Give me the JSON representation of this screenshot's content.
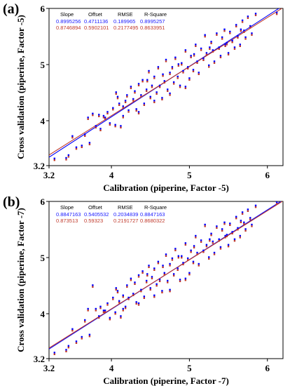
{
  "colors": {
    "calibration": "#0000ff",
    "validation": "#c0392b",
    "point_fill": "#7b2d8e",
    "axis": "#000000"
  },
  "chart_data": [
    {
      "panel_label": "(a)",
      "type": "scatter",
      "xlabel": "Calibration (piperine, Factor -5)",
      "ylabel": "Cross validation (piperine, Factor -5)",
      "xlim": [
        3.2,
        6.2
      ],
      "ylim": [
        3.2,
        6.0
      ],
      "x_ticks": [
        "3.2",
        "4",
        "5",
        "6"
      ],
      "y_ticks": [
        "3.2",
        "4",
        "5",
        "6"
      ],
      "stats_table": {
        "headers": [
          "Slope",
          "Offset",
          "RMSE",
          "R-Square"
        ],
        "rows": [
          {
            "color": "blue",
            "values": [
              "0.8995256",
              "0.4711136",
              "0.189965",
              "0.8995257"
            ]
          },
          {
            "color": "red",
            "values": [
              "0.8746894",
              "0.5902101",
              "0.2177495",
              "0.8633951"
            ]
          }
        ]
      },
      "fit_lines": [
        {
          "color": "blue",
          "slope": 0.8995,
          "offset": 0.4711
        },
        {
          "color": "red",
          "slope": 0.8747,
          "offset": 0.5902
        }
      ],
      "points": [
        [
          3.27,
          3.32
        ],
        [
          3.42,
          3.33
        ],
        [
          3.45,
          3.38
        ],
        [
          3.5,
          3.72
        ],
        [
          3.55,
          3.52
        ],
        [
          3.62,
          3.55
        ],
        [
          3.66,
          3.75
        ],
        [
          3.72,
          3.6
        ],
        [
          3.76,
          4.12
        ],
        [
          3.8,
          3.9
        ],
        [
          3.84,
          4.1
        ],
        [
          3.86,
          3.85
        ],
        [
          3.9,
          4.08
        ],
        [
          3.95,
          4.15
        ],
        [
          3.98,
          3.95
        ],
        [
          4.02,
          4.22
        ],
        [
          4.05,
          3.92
        ],
        [
          4.08,
          4.42
        ],
        [
          4.1,
          4.3
        ],
        [
          4.12,
          3.9
        ],
        [
          4.15,
          4.25
        ],
        [
          4.18,
          4.35
        ],
        [
          4.2,
          4.45
        ],
        [
          4.22,
          4.18
        ],
        [
          4.25,
          4.6
        ],
        [
          4.28,
          4.38
        ],
        [
          4.3,
          4.52
        ],
        [
          4.32,
          4.2
        ],
        [
          4.35,
          4.65
        ],
        [
          4.38,
          4.45
        ],
        [
          4.4,
          4.72
        ],
        [
          4.42,
          4.3
        ],
        [
          4.45,
          4.55
        ],
        [
          4.48,
          4.88
        ],
        [
          4.5,
          4.42
        ],
        [
          4.52,
          4.62
        ],
        [
          4.55,
          4.78
        ],
        [
          4.58,
          4.5
        ],
        [
          4.6,
          4.95
        ],
        [
          4.62,
          4.62
        ],
        [
          4.65,
          4.4
        ],
        [
          4.68,
          4.7
        ],
        [
          4.7,
          5.08
        ],
        [
          4.72,
          4.55
        ],
        [
          4.75,
          4.85
        ],
        [
          4.78,
          4.95
        ],
        [
          4.8,
          4.68
        ],
        [
          4.82,
          5.12
        ],
        [
          4.85,
          4.78
        ],
        [
          4.88,
          4.62
        ],
        [
          4.9,
          5.02
        ],
        [
          4.92,
          4.88
        ],
        [
          4.95,
          5.25
        ],
        [
          4.98,
          4.95
        ],
        [
          5.0,
          4.75
        ],
        [
          5.02,
          5.15
        ],
        [
          5.05,
          4.9
        ],
        [
          5.08,
          5.35
        ],
        [
          5.1,
          5.05
        ],
        [
          5.12,
          4.85
        ],
        [
          5.15,
          5.28
        ],
        [
          5.18,
          5.1
        ],
        [
          5.2,
          5.52
        ],
        [
          5.22,
          5.2
        ],
        [
          5.25,
          4.98
        ],
        [
          5.28,
          5.4
        ],
        [
          5.3,
          5.25
        ],
        [
          5.32,
          5.05
        ],
        [
          5.35,
          5.55
        ],
        [
          5.38,
          5.3
        ],
        [
          5.4,
          5.15
        ],
        [
          5.42,
          5.48
        ],
        [
          5.45,
          5.62
        ],
        [
          5.48,
          5.38
        ],
        [
          5.5,
          5.2
        ],
        [
          5.52,
          5.58
        ],
        [
          5.55,
          5.42
        ],
        [
          5.58,
          5.3
        ],
        [
          5.6,
          5.7
        ],
        [
          5.62,
          5.5
        ],
        [
          5.65,
          5.35
        ],
        [
          5.68,
          5.78
        ],
        [
          5.7,
          5.6
        ],
        [
          5.72,
          5.48
        ],
        [
          5.75,
          5.85
        ],
        [
          5.78,
          5.68
        ],
        [
          5.8,
          5.55
        ],
        [
          5.85,
          5.9
        ],
        [
          6.12,
          5.92
        ],
        [
          4.15,
          4.08
        ],
        [
          4.35,
          4.15
        ],
        [
          4.55,
          4.35
        ],
        [
          4.75,
          4.48
        ],
        [
          4.95,
          4.6
        ],
        [
          3.92,
          4.05
        ],
        [
          4.06,
          4.5
        ],
        [
          4.46,
          4.72
        ],
        [
          4.66,
          4.82
        ],
        [
          4.86,
          5.0
        ],
        [
          5.06,
          5.18
        ],
        [
          5.26,
          5.3
        ],
        [
          5.46,
          5.35
        ],
        [
          5.66,
          5.62
        ],
        [
          3.7,
          4.05
        ]
      ]
    },
    {
      "panel_label": "(b)",
      "type": "scatter",
      "xlabel": "Calibration (piperine, Factor -7)",
      "ylabel": "Cross validation (piperine, Factor -7)",
      "xlim": [
        3.2,
        6.2
      ],
      "ylim": [
        3.2,
        6.0
      ],
      "x_ticks": [
        "3.2",
        "4",
        "5",
        "6"
      ],
      "y_ticks": [
        "3.2",
        "4",
        "5",
        "6"
      ],
      "stats_table": {
        "headers": [
          "Slope",
          "Offset",
          "RMSE",
          "R-Square"
        ],
        "rows": [
          {
            "color": "blue",
            "values": [
              "0.8847163",
              "0.5405532",
              "0.2034839",
              "0.8847163"
            ]
          },
          {
            "color": "red",
            "values": [
              "0.873513",
              "0.59323",
              "0.2191727",
              "0.8680322"
            ]
          }
        ]
      },
      "fit_lines": [
        {
          "color": "blue",
          "slope": 0.8847,
          "offset": 0.5406
        },
        {
          "color": "red",
          "slope": 0.8735,
          "offset": 0.5932
        }
      ],
      "points": [
        [
          3.27,
          3.3
        ],
        [
          3.42,
          3.35
        ],
        [
          3.45,
          3.42
        ],
        [
          3.5,
          3.72
        ],
        [
          3.55,
          3.5
        ],
        [
          3.62,
          3.58
        ],
        [
          3.66,
          3.88
        ],
        [
          3.72,
          3.62
        ],
        [
          3.76,
          4.5
        ],
        [
          3.8,
          4.08
        ],
        [
          3.84,
          3.95
        ],
        [
          3.86,
          4.12
        ],
        [
          3.9,
          4.05
        ],
        [
          3.95,
          4.18
        ],
        [
          3.98,
          3.92
        ],
        [
          4.02,
          4.28
        ],
        [
          4.05,
          4.02
        ],
        [
          4.08,
          4.4
        ],
        [
          4.1,
          4.22
        ],
        [
          4.12,
          3.95
        ],
        [
          4.15,
          4.32
        ],
        [
          4.18,
          4.12
        ],
        [
          4.2,
          4.5
        ],
        [
          4.22,
          4.28
        ],
        [
          4.25,
          4.62
        ],
        [
          4.28,
          4.35
        ],
        [
          4.3,
          4.55
        ],
        [
          4.32,
          4.2
        ],
        [
          4.35,
          4.68
        ],
        [
          4.38,
          4.42
        ],
        [
          4.4,
          4.75
        ],
        [
          4.42,
          4.3
        ],
        [
          4.45,
          4.58
        ],
        [
          4.48,
          4.85
        ],
        [
          4.5,
          4.45
        ],
        [
          4.52,
          4.65
        ],
        [
          4.55,
          4.8
        ],
        [
          4.58,
          4.52
        ],
        [
          4.6,
          4.92
        ],
        [
          4.62,
          4.6
        ],
        [
          4.65,
          4.4
        ],
        [
          4.68,
          4.72
        ],
        [
          4.7,
          5.05
        ],
        [
          4.72,
          4.58
        ],
        [
          4.75,
          4.88
        ],
        [
          4.78,
          4.98
        ],
        [
          4.8,
          4.7
        ],
        [
          4.82,
          5.15
        ],
        [
          4.85,
          4.8
        ],
        [
          4.88,
          4.6
        ],
        [
          4.9,
          5.02
        ],
        [
          4.92,
          4.9
        ],
        [
          4.95,
          5.25
        ],
        [
          4.98,
          4.98
        ],
        [
          5.0,
          4.72
        ],
        [
          5.02,
          5.12
        ],
        [
          5.05,
          4.92
        ],
        [
          5.08,
          5.38
        ],
        [
          5.1,
          5.08
        ],
        [
          5.12,
          4.88
        ],
        [
          5.15,
          5.3
        ],
        [
          5.18,
          5.12
        ],
        [
          5.2,
          5.58
        ],
        [
          5.22,
          5.22
        ],
        [
          5.25,
          5.0
        ],
        [
          5.28,
          5.42
        ],
        [
          5.3,
          5.28
        ],
        [
          5.32,
          5.08
        ],
        [
          5.35,
          5.55
        ],
        [
          5.38,
          5.32
        ],
        [
          5.4,
          5.18
        ],
        [
          5.42,
          5.5
        ],
        [
          5.45,
          5.62
        ],
        [
          5.48,
          5.4
        ],
        [
          5.5,
          5.22
        ],
        [
          5.52,
          5.6
        ],
        [
          5.55,
          5.45
        ],
        [
          5.58,
          5.32
        ],
        [
          5.6,
          5.72
        ],
        [
          5.62,
          5.52
        ],
        [
          5.65,
          5.38
        ],
        [
          5.68,
          5.8
        ],
        [
          5.7,
          5.62
        ],
        [
          5.72,
          5.5
        ],
        [
          5.75,
          5.85
        ],
        [
          5.78,
          5.7
        ],
        [
          5.8,
          5.58
        ],
        [
          5.85,
          5.92
        ],
        [
          6.12,
          5.98
        ],
        [
          4.15,
          4.08
        ],
        [
          4.35,
          4.18
        ],
        [
          4.55,
          4.32
        ],
        [
          4.75,
          4.42
        ],
        [
          4.95,
          4.62
        ],
        [
          3.92,
          4.05
        ],
        [
          4.06,
          4.45
        ],
        [
          4.46,
          4.7
        ],
        [
          4.66,
          4.85
        ],
        [
          4.86,
          5.02
        ],
        [
          5.06,
          5.2
        ],
        [
          5.26,
          5.32
        ],
        [
          5.46,
          5.38
        ],
        [
          5.66,
          5.65
        ],
        [
          3.7,
          4.08
        ]
      ]
    }
  ]
}
